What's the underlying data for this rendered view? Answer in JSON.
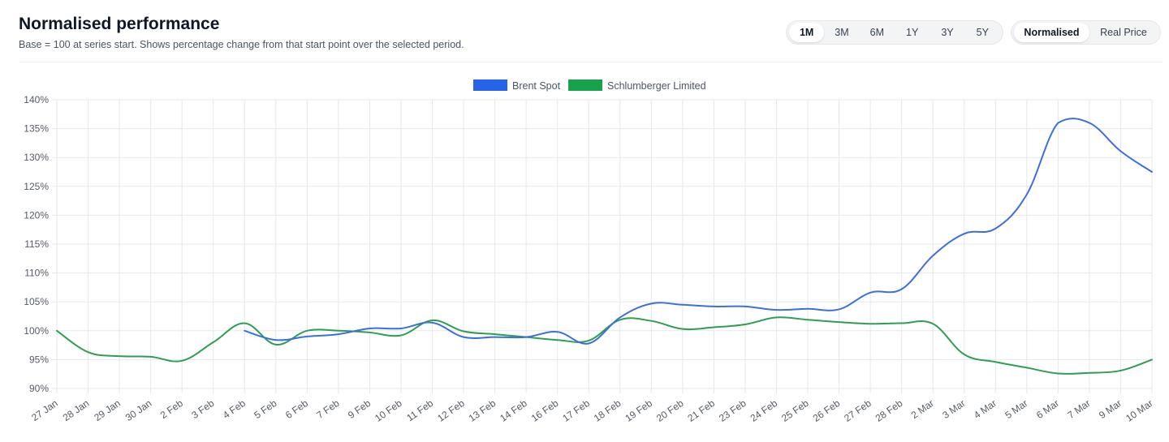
{
  "header": {
    "title": "Normalised performance",
    "subtitle": "Base = 100 at series start. Shows percentage change from that start point over the selected period."
  },
  "range_buttons": [
    {
      "label": "1M",
      "active": true
    },
    {
      "label": "3M",
      "active": false
    },
    {
      "label": "6M",
      "active": false
    },
    {
      "label": "1Y",
      "active": false
    },
    {
      "label": "3Y",
      "active": false
    },
    {
      "label": "5Y",
      "active": false
    }
  ],
  "mode_buttons": [
    {
      "label": "Normalised",
      "active": true
    },
    {
      "label": "Real Price",
      "active": false
    }
  ],
  "chart_data": {
    "type": "line",
    "title": "",
    "xlabel": "",
    "ylabel": "",
    "ylim": [
      90,
      140
    ],
    "yticks": [
      140,
      135,
      130,
      125,
      120,
      115,
      110,
      105,
      100,
      95,
      90
    ],
    "ytick_suffix": "%",
    "grid": true,
    "legend_position": "top-center",
    "categories": [
      "27 Jan",
      "28 Jan",
      "29 Jan",
      "30 Jan",
      "2 Feb",
      "3 Feb",
      "4 Feb",
      "5 Feb",
      "6 Feb",
      "7 Feb",
      "9 Feb",
      "10 Feb",
      "11 Feb",
      "12 Feb",
      "13 Feb",
      "14 Feb",
      "16 Feb",
      "17 Feb",
      "18 Feb",
      "19 Feb",
      "20 Feb",
      "21 Feb",
      "23 Feb",
      "24 Feb",
      "25 Feb",
      "26 Feb",
      "27 Feb",
      "28 Feb",
      "2 Mar",
      "3 Mar",
      "4 Mar",
      "5 Mar",
      "6 Mar",
      "7 Mar",
      "9 Mar",
      "10 Mar"
    ],
    "series": [
      {
        "name": "Brent Spot",
        "color": "#3b6fe0",
        "legend_color": "#2563eb",
        "values": [
          null,
          null,
          null,
          null,
          null,
          null,
          100.0,
          98.4,
          99.0,
          99.4,
          100.4,
          100.4,
          101.4,
          98.9,
          98.9,
          98.9,
          99.8,
          97.8,
          102.3,
          104.7,
          104.5,
          104.2,
          104.2,
          103.6,
          103.8,
          103.7,
          106.6,
          107.2,
          113.0,
          116.8,
          117.7,
          123.6,
          136.0,
          136.0,
          131.1,
          127.5
        ]
      },
      {
        "name": "Schlumberger Limited",
        "color": "#2e9e4f",
        "legend_color": "#16a34a",
        "values": [
          100.0,
          96.3,
          95.6,
          95.5,
          94.8,
          98.0,
          101.3,
          97.6,
          100.0,
          100.0,
          99.7,
          99.2,
          101.8,
          99.9,
          99.4,
          98.9,
          98.4,
          98.3,
          101.9,
          101.7,
          100.3,
          100.6,
          101.1,
          102.3,
          101.9,
          101.5,
          101.2,
          101.3,
          101.2,
          95.9,
          94.6,
          93.6,
          92.6,
          92.7,
          93.1,
          95.0
        ]
      }
    ]
  }
}
